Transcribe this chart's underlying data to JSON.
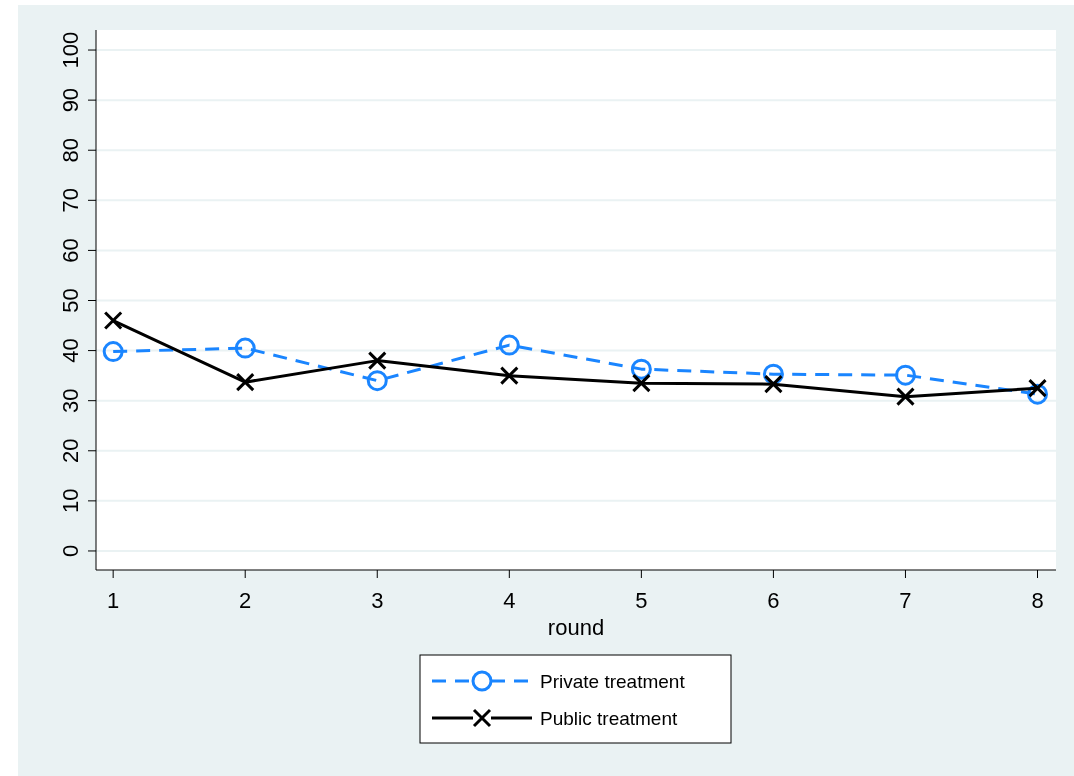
{
  "chart_data": {
    "type": "line",
    "xlabel": "round",
    "x": [
      1,
      2,
      3,
      4,
      5,
      6,
      7,
      8
    ],
    "xlim": [
      0.87,
      8.14
    ],
    "xticks": [
      1,
      2,
      3,
      4,
      5,
      6,
      7,
      8
    ],
    "ylim": [
      -3.8,
      104
    ],
    "yticks": [
      0,
      10,
      20,
      30,
      40,
      50,
      60,
      70,
      80,
      90,
      100
    ],
    "grid": "y",
    "legend": "bottom",
    "series": [
      {
        "name": "Private treatment",
        "color": "#1a85ff",
        "marker": "circle",
        "line_style": "dashed",
        "values": [
          39.8,
          40.5,
          34,
          41.1,
          36.3,
          35.3,
          35.1,
          31.3
        ]
      },
      {
        "name": "Public treatment",
        "color": "#000000",
        "marker": "cross",
        "line_style": "solid",
        "values": [
          46,
          33.7,
          38,
          35,
          33.5,
          33.3,
          30.8,
          32.5
        ]
      }
    ]
  }
}
